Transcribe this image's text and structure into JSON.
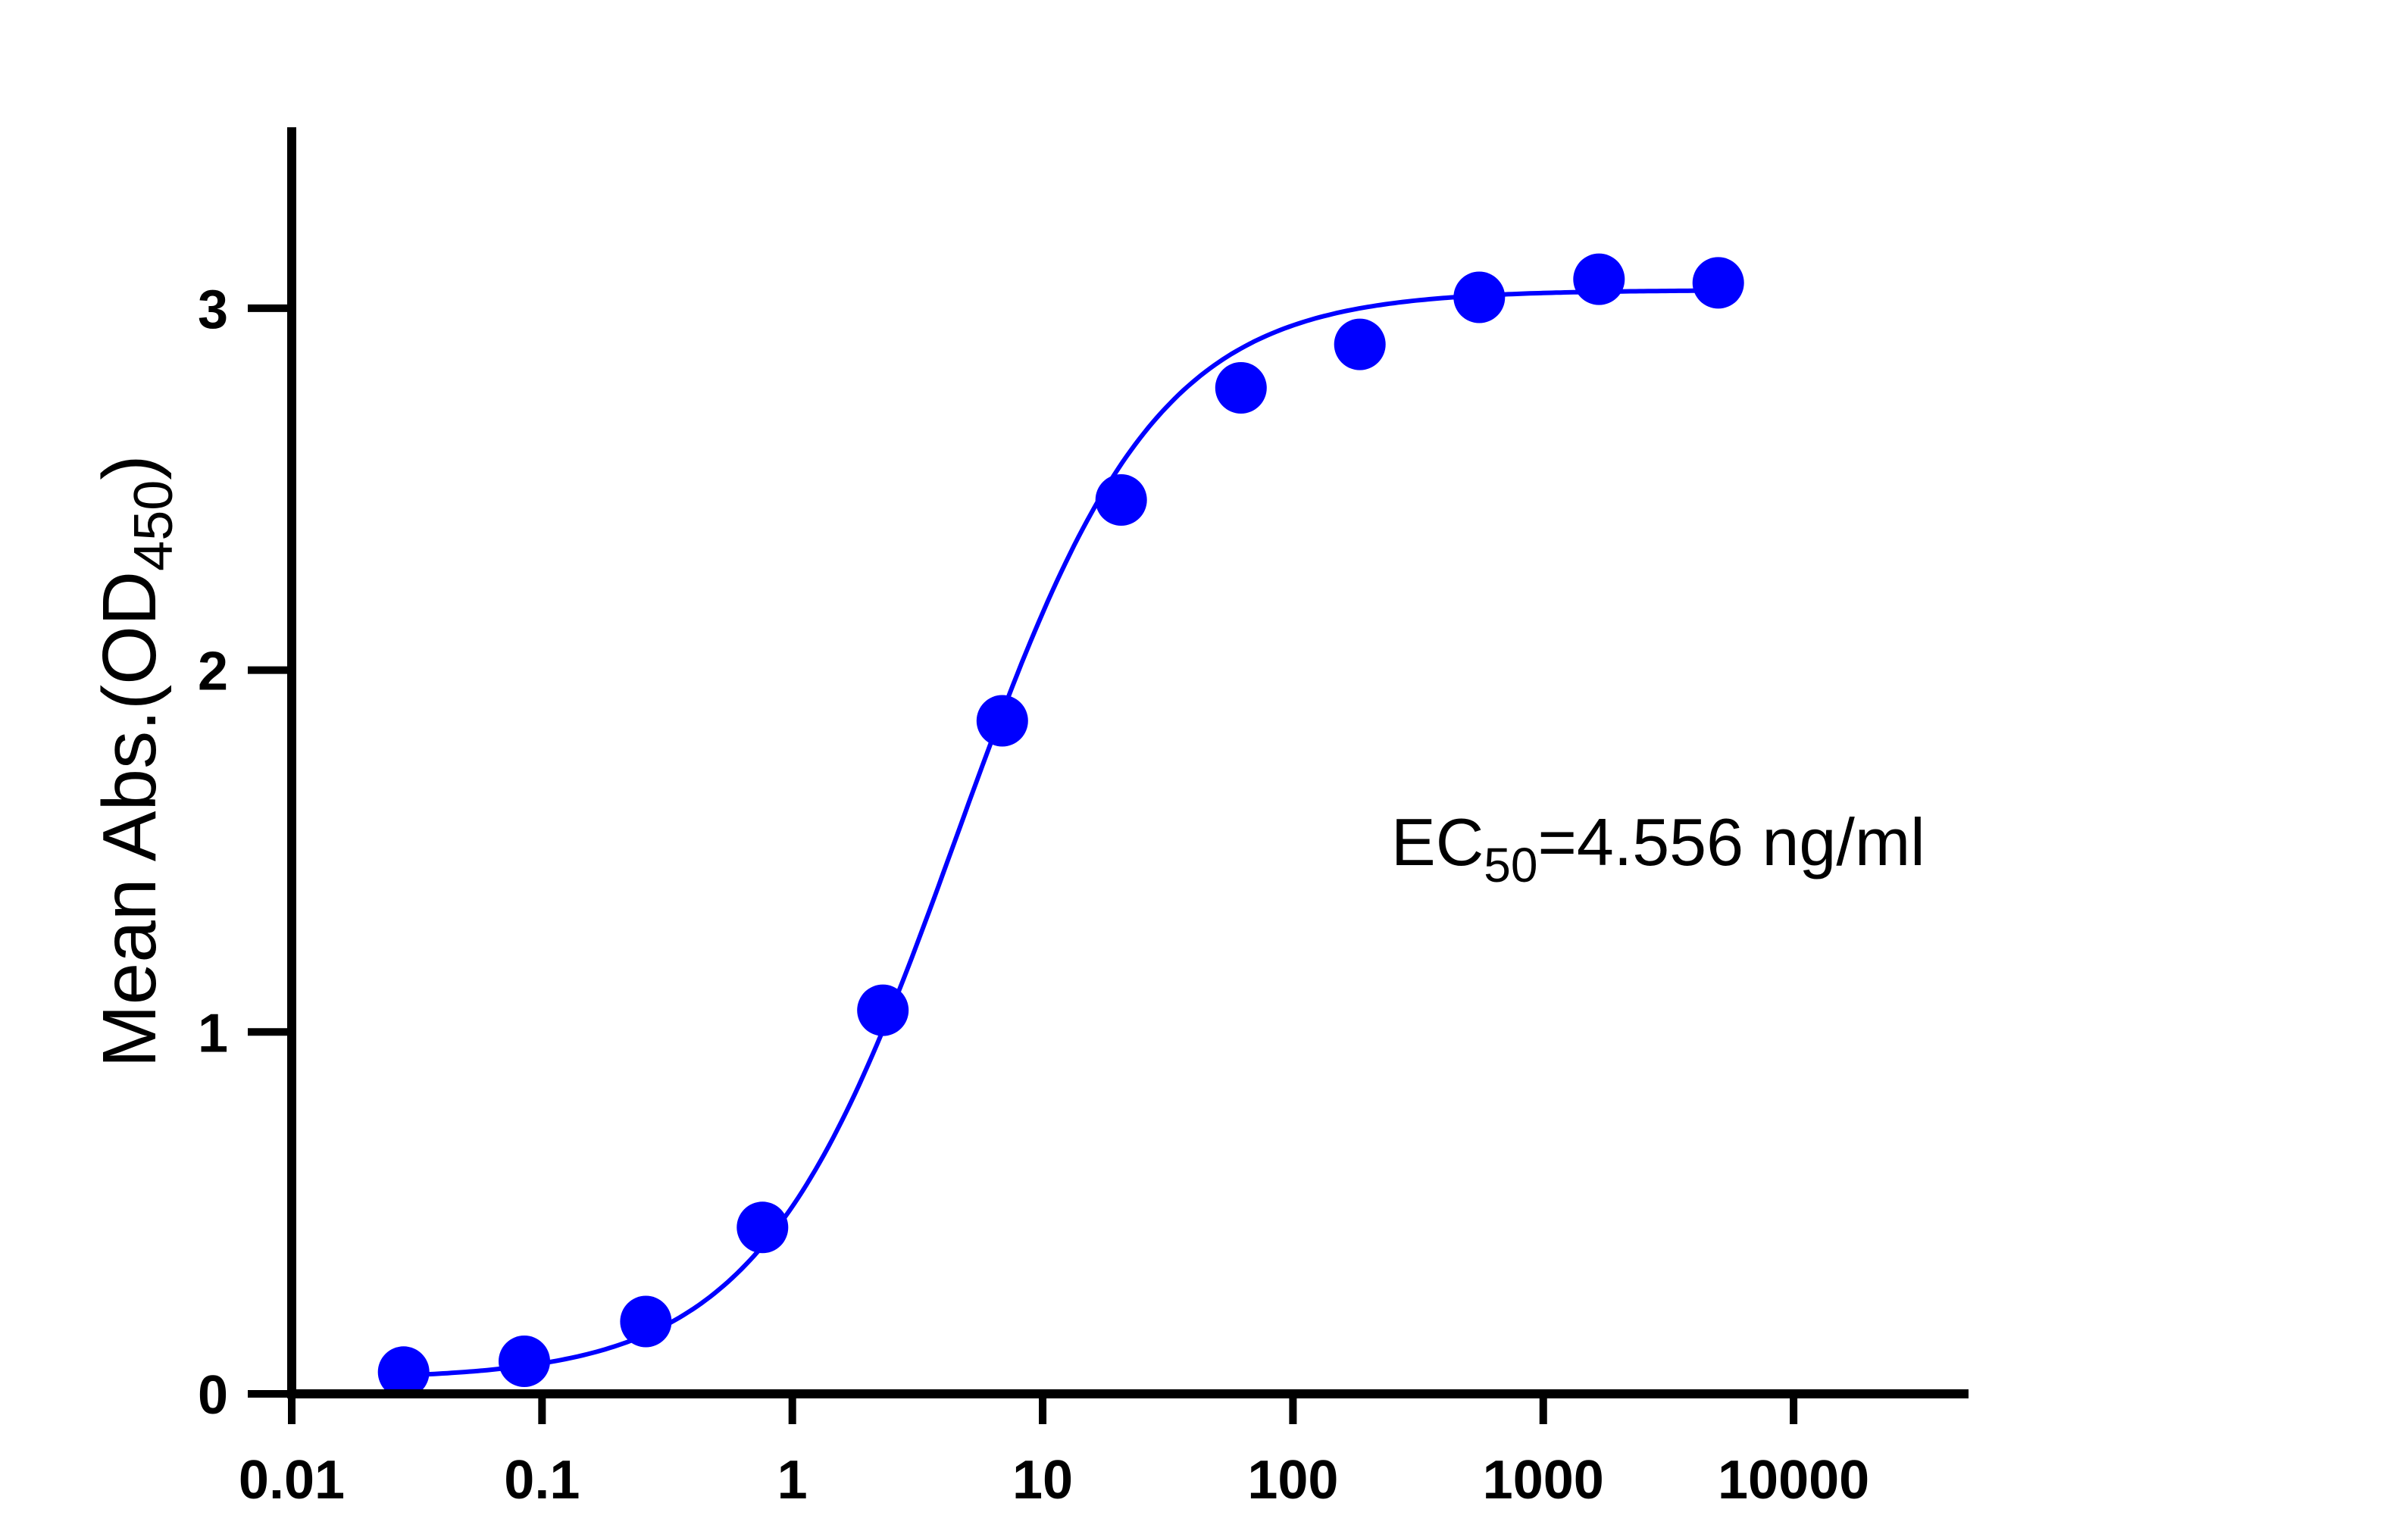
{
  "chart_data": {
    "type": "scatter",
    "title": "",
    "xlabel": "",
    "ylabel": {
      "main": "Mean Abs.(OD",
      "subscript": "450",
      "close": ")"
    },
    "x_scale": "log",
    "xlim": [
      0.01,
      50000
    ],
    "ylim": [
      0,
      3.5
    ],
    "x_ticks": [
      {
        "value": 0.01,
        "label": "0.01"
      },
      {
        "value": 0.1,
        "label": "0.1"
      },
      {
        "value": 1,
        "label": "1"
      },
      {
        "value": 10,
        "label": "10"
      },
      {
        "value": 100,
        "label": "100"
      },
      {
        "value": 1000,
        "label": "1000"
      },
      {
        "value": 10000,
        "label": "10000"
      }
    ],
    "y_ticks": [
      {
        "value": 0,
        "label": "0"
      },
      {
        "value": 1,
        "label": "1"
      },
      {
        "value": 2,
        "label": "2"
      },
      {
        "value": 3,
        "label": "3"
      }
    ],
    "grid": false,
    "legend": "none",
    "series": [
      {
        "color": "#0000ff",
        "x": [
          0.028,
          0.085,
          0.26,
          0.76,
          2.3,
          6.9,
          20.6,
          62,
          185,
          555,
          1670,
          5000
        ],
        "y": [
          0.06,
          0.09,
          0.2,
          0.46,
          1.06,
          1.86,
          2.47,
          2.78,
          2.9,
          3.03,
          3.08,
          3.07
        ]
      }
    ],
    "fit_curve": {
      "color": "#0000ff",
      "model": "4PL",
      "bottom": 0.04,
      "top": 3.05,
      "ec50": 4.556,
      "hill": 1.1
    },
    "annotation": {
      "prefix": "EC",
      "subscript": "50",
      "suffix": "=4.556 ng/ml"
    }
  }
}
